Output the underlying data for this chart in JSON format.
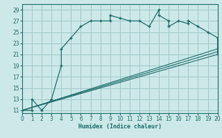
{
  "xlabel": "Humidex (Indice chaleur)",
  "bg_color": "#cce8e8",
  "grid_color": "#a0c8c8",
  "line_color": "#1a6b6b",
  "x_ticks": [
    0,
    1,
    2,
    3,
    4,
    5,
    6,
    7,
    8,
    9,
    10,
    11,
    12,
    13,
    14,
    15,
    16,
    17,
    18,
    19,
    20
  ],
  "y_ticks": [
    11,
    13,
    15,
    17,
    19,
    21,
    23,
    25,
    27,
    29
  ],
  "xlim": [
    0,
    20
  ],
  "ylim": [
    10.5,
    30
  ],
  "main_x": [
    0,
    1,
    1,
    2,
    3,
    4,
    4,
    5,
    6,
    7,
    8,
    9,
    9,
    10,
    11,
    12,
    13,
    14,
    14,
    15,
    15,
    16,
    17,
    17,
    18,
    19,
    20,
    20
  ],
  "main_y": [
    11,
    11,
    13,
    11,
    13,
    19,
    22,
    24,
    26,
    27,
    27,
    27,
    28,
    27.5,
    27,
    27,
    26,
    29,
    28,
    27,
    26,
    27,
    26.5,
    27,
    26,
    25,
    24,
    21
  ],
  "ref_lines": [
    {
      "x": [
        0,
        20
      ],
      "y": [
        11,
        21.0
      ]
    },
    {
      "x": [
        0,
        20
      ],
      "y": [
        11,
        21.5
      ]
    },
    {
      "x": [
        0,
        20
      ],
      "y": [
        11,
        22.0
      ]
    }
  ]
}
